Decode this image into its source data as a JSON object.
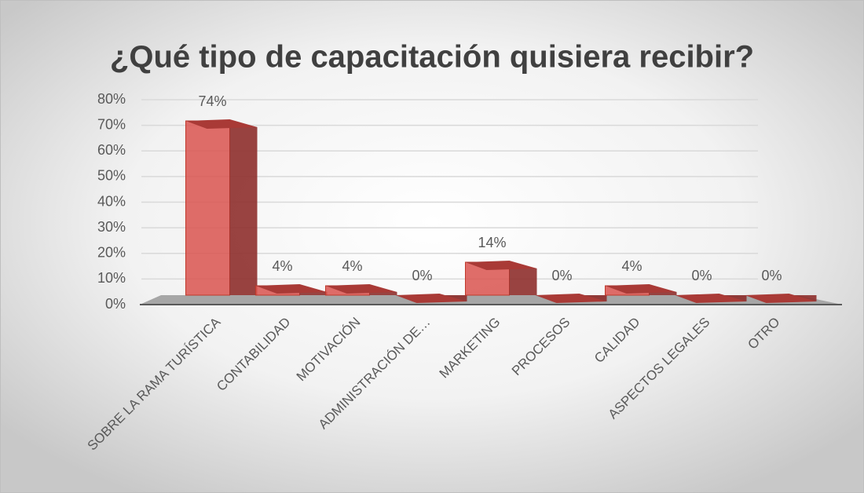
{
  "chart_data": {
    "type": "bar3d",
    "title": "¿Qué tipo de capacitación quisiera recibir?",
    "categories": [
      "SOBRE LA RAMA TURÍSTICA",
      "CONTABILIDAD",
      "MOTIVACIÓN",
      "ADMINISTRACIÓN DE…",
      "MARKETING",
      "PROCESOS",
      "CALIDAD",
      "ASPECTOS LEGALES",
      "OTRO"
    ],
    "values": [
      74,
      4,
      4,
      0,
      14,
      0,
      4,
      0,
      0
    ],
    "value_labels": [
      "74%",
      "4%",
      "4%",
      "0%",
      "14%",
      "0%",
      "4%",
      "0%",
      "0%"
    ],
    "color": "#d9534f",
    "ylim": [
      0,
      80
    ],
    "yticks": [
      {
        "value": 0,
        "label": "0%"
      },
      {
        "value": 10,
        "label": "10%"
      },
      {
        "value": 20,
        "label": "20%"
      },
      {
        "value": 30,
        "label": "30%"
      },
      {
        "value": 40,
        "label": "40%"
      },
      {
        "value": 50,
        "label": "50%"
      },
      {
        "value": 60,
        "label": "60%"
      },
      {
        "value": 70,
        "label": "70%"
      },
      {
        "value": 80,
        "label": "80%"
      }
    ],
    "grid": true
  }
}
